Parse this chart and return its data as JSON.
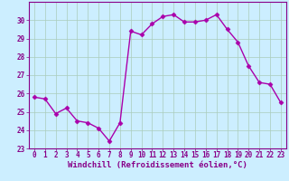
{
  "x": [
    0,
    1,
    2,
    3,
    4,
    5,
    6,
    7,
    8,
    9,
    10,
    11,
    12,
    13,
    14,
    15,
    16,
    17,
    18,
    19,
    20,
    21,
    22,
    23
  ],
  "y": [
    25.8,
    25.7,
    24.9,
    25.2,
    24.5,
    24.4,
    24.1,
    23.4,
    24.4,
    29.4,
    29.2,
    29.8,
    30.2,
    30.3,
    29.9,
    29.9,
    30.0,
    30.3,
    29.5,
    28.8,
    27.5,
    26.6,
    26.5,
    25.5
  ],
  "line_color": "#aa00aa",
  "marker": "D",
  "marker_size": 2.5,
  "bg_color": "#cceeff",
  "grid_color": "#aaccbb",
  "xlabel": "Windchill (Refroidissement éolien,°C)",
  "ylim": [
    23,
    31
  ],
  "xlim": [
    -0.5,
    23.5
  ],
  "yticks": [
    23,
    24,
    25,
    26,
    27,
    28,
    29,
    30
  ],
  "xticks": [
    0,
    1,
    2,
    3,
    4,
    5,
    6,
    7,
    8,
    9,
    10,
    11,
    12,
    13,
    14,
    15,
    16,
    17,
    18,
    19,
    20,
    21,
    22,
    23
  ],
  "tick_fontsize": 5.5,
  "xlabel_fontsize": 6.5,
  "label_color": "#880088",
  "spine_color": "#880088",
  "line_width": 1.0
}
